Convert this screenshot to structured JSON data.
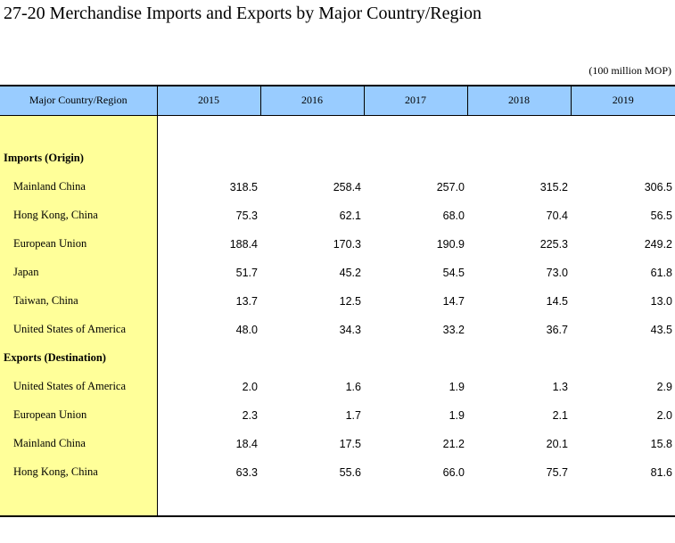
{
  "title": "27-20  Merchandise Imports and Exports by Major Country/Region",
  "unit": "(100 million MOP)",
  "header": {
    "label": "Major Country/Region",
    "years": [
      "2015",
      "2016",
      "2017",
      "2018",
      "2019"
    ]
  },
  "sections": [
    {
      "label": "Imports (Origin)",
      "rows": [
        {
          "name": "Mainland China",
          "values": [
            "318.5",
            "258.4",
            "257.0",
            "315.2",
            "306.5"
          ]
        },
        {
          "name": "Hong Kong, China",
          "values": [
            "75.3",
            "62.1",
            "68.0",
            "70.4",
            "56.5"
          ]
        },
        {
          "name": "European Union",
          "values": [
            "188.4",
            "170.3",
            "190.9",
            "225.3",
            "249.2"
          ]
        },
        {
          "name": "Japan",
          "values": [
            "51.7",
            "45.2",
            "54.5",
            "73.0",
            "61.8"
          ]
        },
        {
          "name": "Taiwan, China",
          "values": [
            "13.7",
            "12.5",
            "14.7",
            "14.5",
            "13.0"
          ]
        },
        {
          "name": "United States of America",
          "values": [
            "48.0",
            "34.3",
            "33.2",
            "36.7",
            "43.5"
          ]
        }
      ]
    },
    {
      "label": "Exports (Destination)",
      "rows": [
        {
          "name": "United States of America",
          "values": [
            "2.0",
            "1.6",
            "1.9",
            "1.3",
            "2.9"
          ]
        },
        {
          "name": "European Union",
          "values": [
            "2.3",
            "1.7",
            "1.9",
            "2.1",
            "2.0"
          ]
        },
        {
          "name": "Mainland China",
          "values": [
            "18.4",
            "17.5",
            "21.2",
            "20.1",
            "15.8"
          ]
        },
        {
          "name": "Hong Kong, China",
          "values": [
            "63.3",
            "55.6",
            "66.0",
            "75.7",
            "81.6"
          ]
        }
      ]
    }
  ],
  "colors": {
    "header": "#99ccff",
    "label_col": "#ffff99"
  }
}
